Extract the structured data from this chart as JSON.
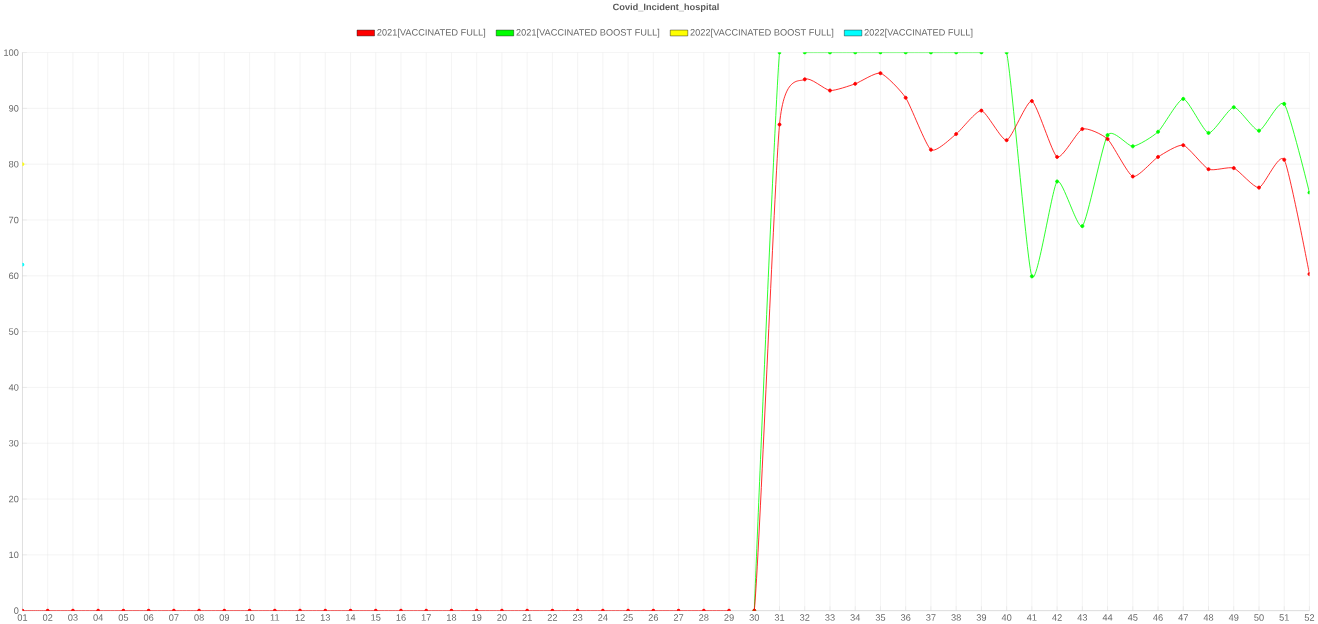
{
  "chart_data": {
    "type": "line",
    "title": "Covid_Incident_hospital",
    "categories": [
      "01",
      "02",
      "03",
      "04",
      "05",
      "06",
      "07",
      "08",
      "09",
      "10",
      "11",
      "12",
      "13",
      "14",
      "15",
      "16",
      "17",
      "18",
      "19",
      "20",
      "21",
      "22",
      "23",
      "24",
      "25",
      "26",
      "27",
      "28",
      "29",
      "30",
      "31",
      "32",
      "33",
      "34",
      "35",
      "36",
      "37",
      "38",
      "39",
      "40",
      "41",
      "42",
      "43",
      "44",
      "45",
      "46",
      "47",
      "48",
      "49",
      "50",
      "51",
      "52"
    ],
    "series": [
      {
        "name": "2021[VACCINATED FULL]",
        "color": "#ff0000",
        "values": [
          0,
          0,
          0,
          0,
          0,
          0,
          0,
          0,
          0,
          0,
          0,
          0,
          0,
          0,
          0,
          0,
          0,
          0,
          0,
          0,
          0,
          0,
          0,
          0,
          0,
          0,
          0,
          0,
          0,
          0,
          87.1,
          95.2,
          93.2,
          94.4,
          96.3,
          91.9,
          82.6,
          85.4,
          89.6,
          84.3,
          91.3,
          81.3,
          86.3,
          84.5,
          77.8,
          81.3,
          83.4,
          79.1,
          79.3,
          75.8,
          80.8,
          60.3
        ]
      },
      {
        "name": "2021[VACCINATED BOOST FULL]",
        "color": "#00ff00",
        "values": [
          null,
          null,
          null,
          null,
          null,
          null,
          null,
          null,
          null,
          null,
          null,
          null,
          null,
          null,
          null,
          null,
          null,
          null,
          null,
          null,
          null,
          null,
          null,
          null,
          null,
          null,
          null,
          null,
          null,
          0,
          100,
          100,
          100,
          100,
          100,
          100,
          100,
          100,
          100,
          100,
          59.9,
          76.9,
          68.9,
          85.2,
          83.2,
          85.8,
          91.7,
          85.6,
          90.2,
          86,
          90.8,
          74.9
        ]
      },
      {
        "name": "2022[VACCINATED BOOST FULL]",
        "color": "#ffff00",
        "values": [
          80,
          null,
          null,
          null,
          null,
          null,
          null,
          null,
          null,
          null,
          null,
          null,
          null,
          null,
          null,
          null,
          null,
          null,
          null,
          null,
          null,
          null,
          null,
          null,
          null,
          null,
          null,
          null,
          null,
          null,
          null,
          null,
          null,
          null,
          null,
          null,
          null,
          null,
          null,
          null,
          null,
          null,
          null,
          null,
          null,
          null,
          null,
          null,
          null,
          null,
          null,
          null
        ]
      },
      {
        "name": "2022[VACCINATED FULL]",
        "color": "#00ffff",
        "values": [
          62,
          null,
          null,
          null,
          null,
          null,
          null,
          null,
          null,
          null,
          null,
          null,
          null,
          null,
          null,
          null,
          null,
          null,
          null,
          null,
          null,
          null,
          null,
          null,
          null,
          null,
          null,
          null,
          null,
          null,
          null,
          null,
          null,
          null,
          null,
          null,
          null,
          null,
          null,
          null,
          null,
          null,
          null,
          null,
          null,
          null,
          null,
          null,
          null,
          null,
          null,
          null
        ]
      }
    ],
    "ylim": [
      0,
      100
    ],
    "yticks": [
      0,
      10,
      20,
      30,
      40,
      50,
      60,
      70,
      80,
      90,
      100
    ],
    "grid": true,
    "legend": "top",
    "marker": "circle",
    "line_style": "solid"
  }
}
